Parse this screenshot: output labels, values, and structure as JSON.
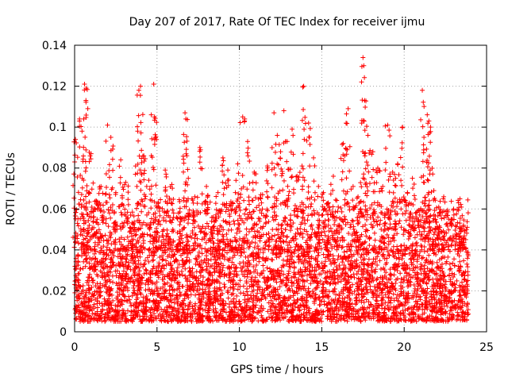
{
  "chart_data": {
    "type": "scatter",
    "title": "Day 207 of 2017, Rate Of TEC Index for receiver ijmu",
    "xlabel": "GPS time / hours",
    "ylabel": "ROTI / TECUs",
    "xlim": [
      0,
      25
    ],
    "ylim": [
      0,
      0.14
    ],
    "xticks": [
      0,
      5,
      10,
      15,
      20,
      25
    ],
    "xtick_labels": [
      "0",
      "5",
      "10",
      "15",
      "20",
      "25"
    ],
    "yticks": [
      0,
      0.02,
      0.04,
      0.06,
      0.08,
      0.1,
      0.12,
      0.14
    ],
    "ytick_labels": [
      "0",
      "0.02",
      "0.04",
      "0.06",
      "0.08",
      "0.1",
      "0.12",
      "0.14"
    ],
    "grid": true,
    "marker": "plus",
    "color": "#ff0000",
    "series": [
      {
        "name": "ROTI",
        "x": [
          0.05,
          0.3,
          0.45,
          0.6,
          0.7,
          0.8,
          1.0,
          1.3,
          1.6,
          2.0,
          2.2,
          2.5,
          2.8,
          3.1,
          3.4,
          3.7,
          3.9,
          4.0,
          4.2,
          4.5,
          4.8,
          4.85,
          5.1,
          5.5,
          5.9,
          6.3,
          6.7,
          6.75,
          6.9,
          7.3,
          7.6,
          8.0,
          8.4,
          8.7,
          9.0,
          9.3,
          9.6,
          9.9,
          10.2,
          10.5,
          10.9,
          11.3,
          11.7,
          12.1,
          12.3,
          12.5,
          12.7,
          12.9,
          13.2,
          13.5,
          13.8,
          13.9,
          14.2,
          14.5,
          14.8,
          15.1,
          15.4,
          15.7,
          16.0,
          16.3,
          16.6,
          16.9,
          17.2,
          17.5,
          17.55,
          17.6,
          17.8,
          18.1,
          18.4,
          18.7,
          19.0,
          19.3,
          19.6,
          19.9,
          20.2,
          20.5,
          20.8,
          21.1,
          21.2,
          21.4,
          21.5,
          21.6,
          21.8,
          22.1,
          22.4,
          22.7,
          23.0,
          23.3,
          23.6
        ],
        "y": [
          0.094,
          0.104,
          0.098,
          0.121,
          0.119,
          0.109,
          0.087,
          0.064,
          0.071,
          0.101,
          0.095,
          0.068,
          0.084,
          0.073,
          0.057,
          0.081,
          0.118,
          0.12,
          0.086,
          0.074,
          0.121,
          0.105,
          0.061,
          0.079,
          0.072,
          0.058,
          0.107,
          0.104,
          0.075,
          0.066,
          0.09,
          0.071,
          0.056,
          0.068,
          0.085,
          0.079,
          0.063,
          0.082,
          0.105,
          0.093,
          0.078,
          0.067,
          0.081,
          0.107,
          0.096,
          0.088,
          0.108,
          0.093,
          0.099,
          0.076,
          0.081,
          0.12,
          0.102,
          0.085,
          0.071,
          0.068,
          0.063,
          0.076,
          0.061,
          0.092,
          0.109,
          0.071,
          0.066,
          0.134,
          0.13,
          0.113,
          0.096,
          0.088,
          0.08,
          0.071,
          0.101,
          0.078,
          0.082,
          0.1,
          0.068,
          0.075,
          0.059,
          0.118,
          0.095,
          0.106,
          0.103,
          0.1,
          0.069,
          0.061,
          0.066,
          0.055,
          0.06,
          0.063,
          0.052
        ]
      }
    ],
    "dense_bands": [
      {
        "x_from": 0.0,
        "x_to": 23.9,
        "y_from": 0.005,
        "y_to": 0.04,
        "density": "very high"
      },
      {
        "x_from": 0.0,
        "x_to": 23.9,
        "y_from": 0.04,
        "y_to": 0.065,
        "density": "medium"
      }
    ]
  }
}
